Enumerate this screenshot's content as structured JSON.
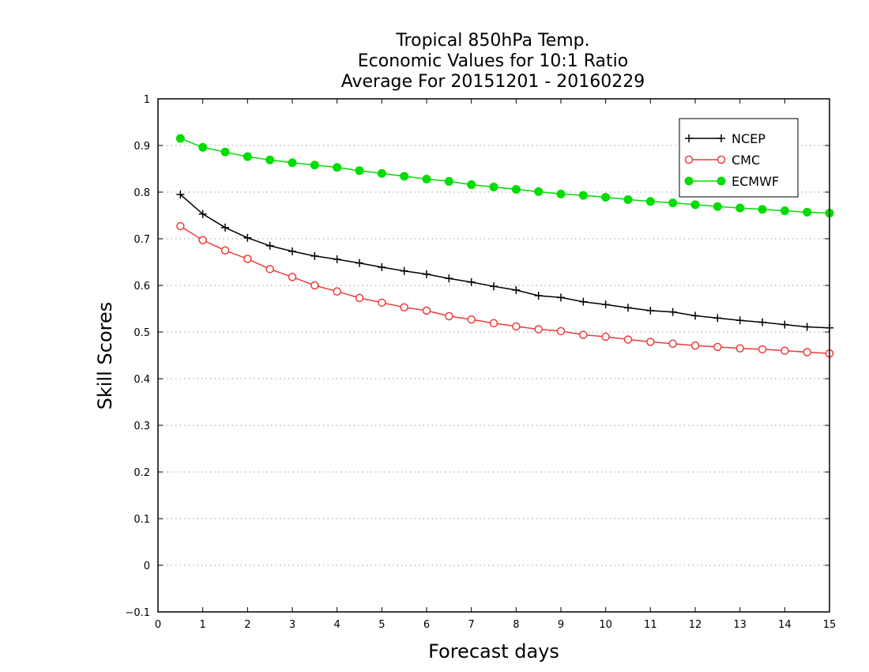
{
  "chart_data": {
    "type": "line",
    "title_lines": [
      "Tropical 850hPa Temp.",
      "Economic Values for 10:1 Ratio",
      "Average For 20151201 - 20160229"
    ],
    "xlabel": "Forecast days",
    "ylabel": "Skill Scores",
    "xlim": [
      0,
      15
    ],
    "ylim": [
      -0.1,
      1
    ],
    "x_ticks": [
      "0",
      "1",
      "2",
      "3",
      "4",
      "5",
      "6",
      "7",
      "8",
      "9",
      "10",
      "11",
      "12",
      "13",
      "14",
      "15"
    ],
    "y_ticks": [
      "−0.1",
      "0",
      "0.1",
      "0.2",
      "0.3",
      "0.4",
      "0.5",
      "0.6",
      "0.7",
      "0.8",
      "0.9",
      "1"
    ],
    "grid": "horizontal dotted",
    "legend_position": "top-right",
    "x": [
      0.5,
      1,
      1.5,
      2,
      2.5,
      3,
      3.5,
      4,
      4.5,
      5,
      5.5,
      6,
      6.5,
      7,
      7.5,
      8,
      8.5,
      9,
      9.5,
      10,
      10.5,
      11,
      11.5,
      12,
      12.5,
      13,
      13.5,
      14,
      14.5,
      15
    ],
    "series": [
      {
        "name": "NCEP",
        "color": "#000000",
        "marker": "plus",
        "values": [
          0.795,
          0.753,
          0.724,
          0.702,
          0.685,
          0.673,
          0.663,
          0.656,
          0.648,
          0.639,
          0.631,
          0.624,
          0.615,
          0.607,
          0.598,
          0.59,
          0.578,
          0.574,
          0.565,
          0.559,
          0.552,
          0.546,
          0.543,
          0.535,
          0.53,
          0.525,
          0.521,
          0.516,
          0.511,
          0.509
        ]
      },
      {
        "name": "CMC",
        "color": "#ee3b3b",
        "marker": "open-circle",
        "values": [
          0.727,
          0.697,
          0.675,
          0.657,
          0.635,
          0.618,
          0.6,
          0.587,
          0.573,
          0.563,
          0.553,
          0.546,
          0.534,
          0.527,
          0.519,
          0.512,
          0.506,
          0.502,
          0.494,
          0.49,
          0.484,
          0.479,
          0.475,
          0.471,
          0.468,
          0.465,
          0.463,
          0.46,
          0.457,
          0.454
        ]
      },
      {
        "name": "ECMWF",
        "color": "#00dd00",
        "marker": "filled-circle",
        "values": [
          0.915,
          0.896,
          0.886,
          0.876,
          0.869,
          0.863,
          0.858,
          0.853,
          0.846,
          0.84,
          0.834,
          0.828,
          0.823,
          0.816,
          0.811,
          0.806,
          0.801,
          0.796,
          0.793,
          0.789,
          0.784,
          0.78,
          0.777,
          0.773,
          0.769,
          0.766,
          0.763,
          0.76,
          0.757,
          0.755
        ]
      }
    ]
  }
}
